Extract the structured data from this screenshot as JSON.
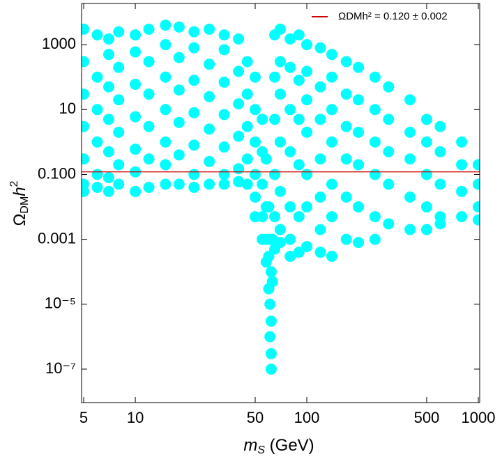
{
  "chart_data": {
    "type": "scatter",
    "x_label": {
      "base": "m",
      "sub": "S",
      "rest": " (GeV)"
    },
    "y_label": {
      "base": "Ω",
      "sub": "DM",
      "rest": "h",
      "sup": "2"
    },
    "xscale": "log",
    "yscale": "log",
    "xlim": [
      4.86,
      1019
    ],
    "ylim": [
      9.3e-09,
      18600
    ],
    "xticks": [
      5,
      10,
      50,
      100,
      500,
      1000
    ],
    "yticks": [
      1000,
      10,
      {
        "value": 0.1,
        "label": "0.100"
      },
      0.001,
      {
        "value": 1e-05,
        "label": "10⁻⁵"
      },
      {
        "value": 1e-07,
        "label": "10⁻⁷"
      }
    ],
    "reference_line": {
      "name": "ΩDMh² = 0.120 ± 0.002",
      "value": 0.12,
      "color": "#cc0000"
    },
    "series": [
      {
        "color": "#00ffff",
        "x": [
          5,
          5,
          5,
          5,
          5,
          5,
          5,
          6,
          6,
          6,
          6,
          6,
          6,
          7,
          7,
          7,
          7,
          7,
          7,
          7,
          8,
          8,
          8,
          8,
          8,
          8,
          10,
          10,
          10,
          10,
          10,
          10,
          10,
          12,
          12,
          12,
          12,
          12,
          12,
          15,
          15,
          15,
          15,
          15,
          15,
          15,
          18,
          18,
          18,
          18,
          18,
          18,
          22,
          22,
          22,
          22,
          22,
          22,
          22,
          27,
          27,
          27,
          27,
          27,
          27,
          33,
          33,
          33,
          33,
          33,
          33,
          33,
          40,
          40,
          40,
          40,
          40,
          40,
          45,
          45,
          45,
          45,
          45,
          50,
          50,
          50,
          50,
          50,
          50,
          55,
          55,
          55,
          55,
          55,
          58,
          58,
          58,
          58,
          60,
          60,
          60,
          61,
          61,
          61,
          62,
          62,
          62,
          62,
          63,
          63,
          65,
          65,
          65,
          65,
          65,
          65,
          70,
          70,
          70,
          70,
          70,
          70,
          70,
          80,
          80,
          80,
          80,
          80,
          80,
          80,
          90,
          90,
          90,
          90,
          90,
          90,
          100,
          100,
          100,
          100,
          100,
          100,
          100,
          120,
          120,
          120,
          120,
          120,
          120,
          120,
          140,
          140,
          140,
          140,
          140,
          140,
          140,
          170,
          170,
          170,
          170,
          170,
          170,
          200,
          200,
          200,
          200,
          200,
          200,
          250,
          250,
          250,
          250,
          250,
          250,
          300,
          300,
          300,
          300,
          300,
          400,
          400,
          400,
          400,
          400,
          500,
          500,
          500,
          500,
          500,
          600,
          600,
          600,
          600,
          600,
          800,
          800,
          800,
          800,
          1000,
          1000,
          1000,
          1000
        ],
        "values": [
          3000,
          300,
          30,
          3,
          0.3,
          0.05,
          0.03,
          2000,
          100,
          10,
          1,
          0.1,
          0.04,
          1500,
          500,
          50,
          5,
          0.5,
          0.08,
          0.03,
          2500,
          200,
          20,
          2,
          0.2,
          0.05,
          2000,
          600,
          60,
          6,
          0.6,
          0.12,
          0.03,
          3000,
          300,
          30,
          3,
          0.3,
          0.04,
          4000,
          1000,
          100,
          10,
          1,
          0.2,
          0.05,
          3500,
          400,
          40,
          4,
          0.4,
          0.05,
          2500,
          800,
          80,
          8,
          0.8,
          0.1,
          0.04,
          3000,
          250,
          25,
          2.5,
          0.25,
          0.05,
          2000,
          700,
          70,
          7,
          0.7,
          0.1,
          0.05,
          1500,
          150,
          15,
          1.5,
          0.15,
          0.06,
          300,
          30,
          3,
          0.3,
          0.05,
          100,
          10,
          1,
          0.1,
          0.02,
          0.005,
          5,
          0.5,
          0.05,
          0.005,
          0.001,
          0.3,
          0.01,
          0.001,
          0.0002,
          0.01,
          0.0003,
          3e-05,
          0.001,
          1e-05,
          1e-06,
          0.0001,
          3e-06,
          1e-07,
          3e-07,
          5e-05,
          0.001,
          2000,
          100,
          5,
          0.1,
          0.005,
          0.0005,
          3000,
          300,
          30,
          1,
          0.03,
          0.002,
          0.0008,
          1500,
          200,
          10,
          0.5,
          0.01,
          0.001,
          0.0003,
          2000,
          80,
          5,
          0.2,
          0.005,
          0.0004,
          1000,
          150,
          20,
          2,
          0.1,
          0.01,
          0.0006,
          800,
          50,
          5,
          0.3,
          0.02,
          0.002,
          0.0004,
          500,
          100,
          10,
          1,
          0.05,
          0.005,
          0.0003,
          300,
          30,
          3,
          0.3,
          0.02,
          0.001,
          200,
          20,
          2,
          0.2,
          0.01,
          0.0008,
          100,
          10,
          1,
          0.1,
          0.005,
          0.001,
          50,
          5,
          0.5,
          0.05,
          0.003,
          20,
          2,
          0.3,
          0.02,
          0.002,
          5,
          1,
          0.1,
          0.01,
          0.002,
          3,
          0.5,
          0.05,
          0.005,
          0.003,
          1,
          0.2,
          0.03,
          0.005,
          0.2,
          0.05,
          0.01,
          0.004
        ]
      }
    ]
  }
}
